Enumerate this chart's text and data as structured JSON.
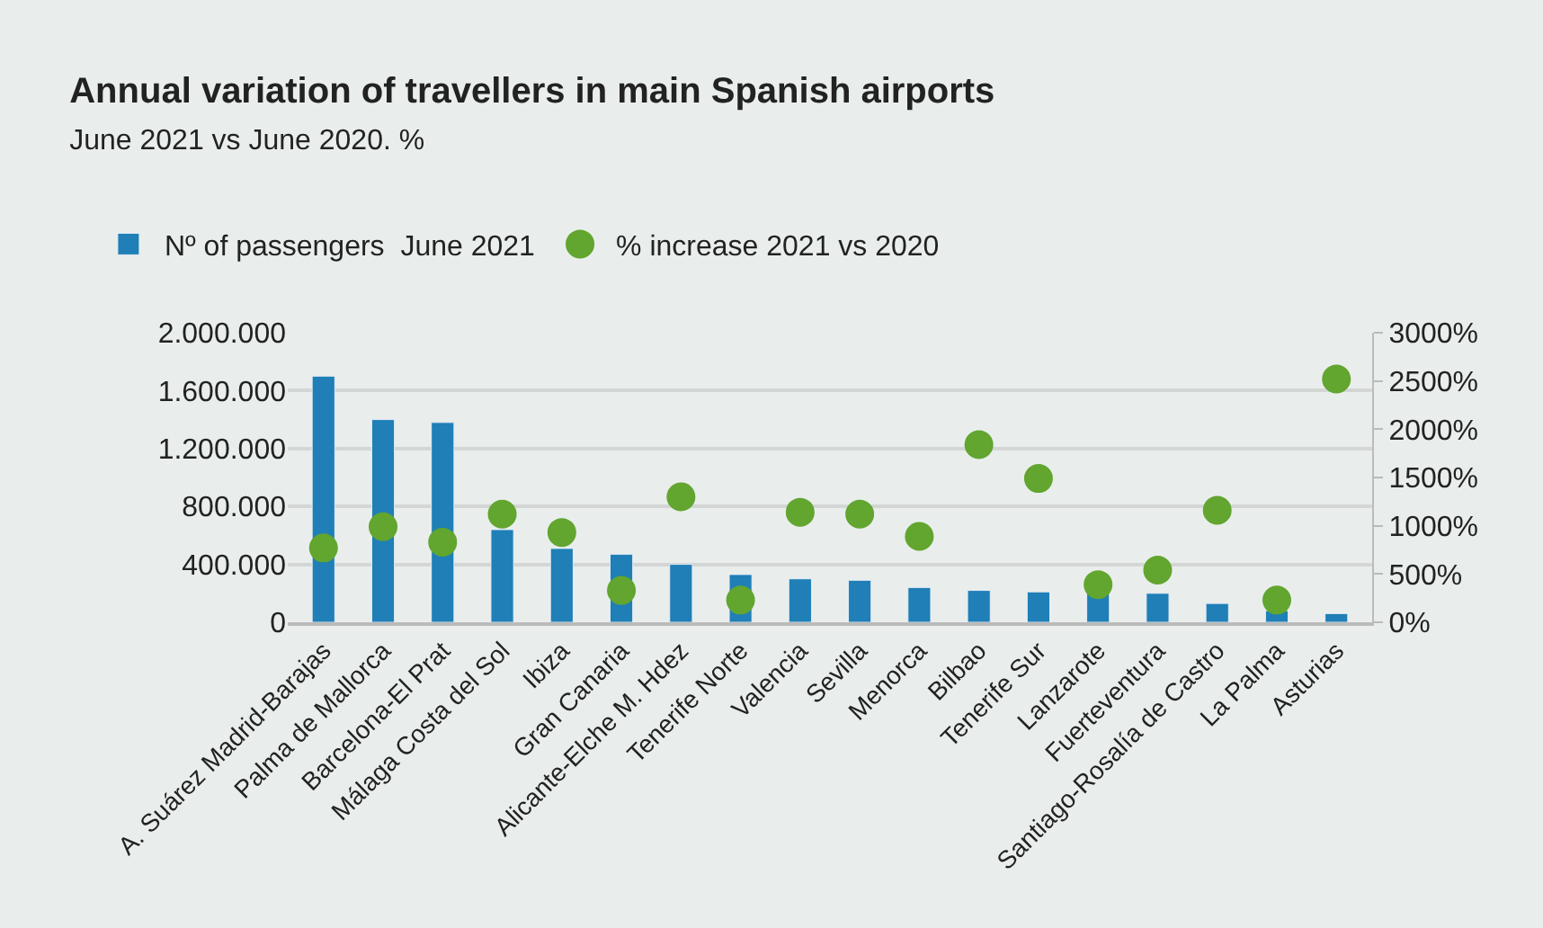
{
  "chart_data": {
    "type": "bar",
    "title": "Annual variation of travellers in main Spanish airports",
    "subtitle": "June 2021 vs June 2020. %",
    "categories": [
      "A. Suárez Madrid-Barajas",
      "Palma de Mallorca",
      "Barcelona-El Prat",
      "Málaga Costa del Sol",
      "Ibiza",
      "Gran Canaria",
      "Alicante-Elche M. Hdez",
      "Tenerife Norte",
      "Valencia",
      "Sevilla",
      "Menorca",
      "Bilbao",
      "Tenerife Sur",
      "Lanzarote",
      "Fuerteventura",
      "Santiago-Rosalía de Castro",
      "La Palma",
      "Asturias"
    ],
    "series": [
      {
        "name": "Nº of passengers  June 2021",
        "color": "#1f7fb6",
        "values": [
          1700000,
          1400000,
          1380000,
          640000,
          510000,
          470000,
          400000,
          330000,
          300000,
          290000,
          240000,
          220000,
          210000,
          200000,
          200000,
          130000,
          80000,
          60000
        ]
      },
      {
        "name": "% increase 2021 vs 2020",
        "type": "scatter",
        "axis": "y2",
        "marker": "circle",
        "color": "#62a52f",
        "values": [
          770,
          990,
          830,
          1120,
          930,
          330,
          1300,
          230,
          1140,
          1120,
          890,
          1840,
          1490,
          390,
          540,
          1160,
          230,
          2520
        ]
      }
    ],
    "ylim": [
      0,
      2000000
    ],
    "yticks": [
      {
        "value": 0,
        "label": "0"
      },
      {
        "value": 400000,
        "label": "400.000"
      },
      {
        "value": 800000,
        "label": "800.000"
      },
      {
        "value": 1200000,
        "label": "1.200.000"
      },
      {
        "value": 1600000,
        "label": "1.600.000"
      },
      {
        "value": 2000000,
        "label": "2.000.000"
      }
    ],
    "y2lim": [
      0,
      3000
    ],
    "y2ticks": [
      {
        "value": 0,
        "label": "0%"
      },
      {
        "value": 500,
        "label": "500%"
      },
      {
        "value": 1000,
        "label": "1000%"
      },
      {
        "value": 1500,
        "label": "1500%"
      },
      {
        "value": 2000,
        "label": "2000%"
      },
      {
        "value": 2500,
        "label": "2500%"
      },
      {
        "value": 3000,
        "label": "3000%"
      }
    ],
    "grid": "y",
    "legend": "top left"
  }
}
